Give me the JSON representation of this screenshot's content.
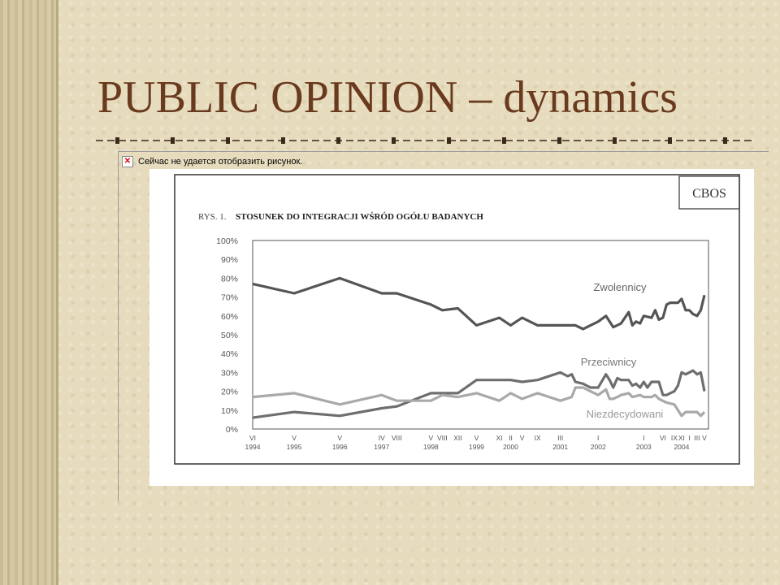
{
  "slide": {
    "title": "PUBLIC OPINION – dynamics",
    "broken_image_text": "Сейчас не удается отобразить рисунок."
  },
  "colors": {
    "title": "#6a3a1e",
    "zwolennicy": "#555555",
    "przeciwnicy": "#6e6e6e",
    "niezdecydowani": "#a9a9a9"
  },
  "chart_data": {
    "type": "line",
    "title": "STOSUNEK DO INTEGRACJI WŚRÓD OGÓŁU BADANYCH",
    "figure_label": "RYS. 1.",
    "source": "CBOS",
    "ylim": [
      0,
      100
    ],
    "yticks": [
      "0%",
      "10%",
      "20%",
      "30%",
      "40%",
      "50%",
      "60%",
      "70%",
      "80%",
      "90%",
      "100%"
    ],
    "xlim": [
      1994.42,
      2004.42
    ],
    "xticks": [
      {
        "t": 1994.42,
        "month": "VI",
        "year": "1994"
      },
      {
        "t": 1995.33,
        "month": "V",
        "year": "1995"
      },
      {
        "t": 1996.33,
        "month": "V",
        "year": "1996"
      },
      {
        "t": 1997.25,
        "month": "IV",
        "year": "1997"
      },
      {
        "t": 1997.58,
        "month": "VIII",
        "year": ""
      },
      {
        "t": 1998.33,
        "month": "V",
        "year": "1998"
      },
      {
        "t": 1998.58,
        "month": "VIII",
        "year": ""
      },
      {
        "t": 1998.92,
        "month": "XII",
        "year": ""
      },
      {
        "t": 1999.33,
        "month": "V",
        "year": "1999"
      },
      {
        "t": 1999.83,
        "month": "XI",
        "year": ""
      },
      {
        "t": 2000.08,
        "month": "II",
        "year": "2000"
      },
      {
        "t": 2000.33,
        "month": "V",
        "year": ""
      },
      {
        "t": 2000.67,
        "month": "IX",
        "year": ""
      },
      {
        "t": 2001.17,
        "month": "III",
        "year": "2001"
      },
      {
        "t": 2002.0,
        "month": "I",
        "year": "2002"
      },
      {
        "t": 2003.0,
        "month": "I",
        "year": "2003"
      },
      {
        "t": 2003.42,
        "month": "VI",
        "year": ""
      },
      {
        "t": 2003.67,
        "month": "IX",
        "year": ""
      },
      {
        "t": 2003.83,
        "month": "XI",
        "year": "2004"
      },
      {
        "t": 2004.0,
        "month": "I",
        "year": ""
      },
      {
        "t": 2004.17,
        "month": "III",
        "year": ""
      },
      {
        "t": 2004.33,
        "month": "V",
        "year": ""
      }
    ],
    "series": [
      {
        "name": "Zwolennicy",
        "points": [
          [
            1994.42,
            77
          ],
          [
            1995.33,
            72
          ],
          [
            1996.33,
            80
          ],
          [
            1997.25,
            72
          ],
          [
            1997.58,
            72
          ],
          [
            1998.33,
            66
          ],
          [
            1998.58,
            63
          ],
          [
            1998.92,
            64
          ],
          [
            1999.33,
            55
          ],
          [
            1999.83,
            59
          ],
          [
            2000.08,
            55
          ],
          [
            2000.33,
            59
          ],
          [
            2000.67,
            55
          ],
          [
            2001.17,
            55
          ],
          [
            2001.5,
            55
          ],
          [
            2001.67,
            53
          ],
          [
            2001.75,
            54
          ],
          [
            2002.0,
            57
          ],
          [
            2002.17,
            60
          ],
          [
            2002.33,
            54
          ],
          [
            2002.5,
            56
          ],
          [
            2002.67,
            62
          ],
          [
            2002.75,
            55
          ],
          [
            2002.83,
            57
          ],
          [
            2002.92,
            56
          ],
          [
            2003.0,
            60
          ],
          [
            2003.17,
            59
          ],
          [
            2003.25,
            63
          ],
          [
            2003.33,
            58
          ],
          [
            2003.42,
            59
          ],
          [
            2003.5,
            66
          ],
          [
            2003.58,
            67
          ],
          [
            2003.67,
            67
          ],
          [
            2003.75,
            67
          ],
          [
            2003.83,
            69
          ],
          [
            2003.92,
            63
          ],
          [
            2004.0,
            63
          ],
          [
            2004.08,
            61
          ],
          [
            2004.17,
            60
          ],
          [
            2004.25,
            63
          ],
          [
            2004.33,
            71
          ]
        ]
      },
      {
        "name": "Przeciwnicy",
        "points": [
          [
            1994.42,
            6
          ],
          [
            1995.33,
            9
          ],
          [
            1996.33,
            7
          ],
          [
            1997.25,
            11
          ],
          [
            1997.58,
            12
          ],
          [
            1998.33,
            19
          ],
          [
            1998.58,
            19
          ],
          [
            1998.92,
            19
          ],
          [
            1999.33,
            26
          ],
          [
            1999.83,
            26
          ],
          [
            2000.08,
            26
          ],
          [
            2000.33,
            25
          ],
          [
            2000.67,
            26
          ],
          [
            2001.17,
            30
          ],
          [
            2001.33,
            28
          ],
          [
            2001.42,
            29
          ],
          [
            2001.5,
            25
          ],
          [
            2001.67,
            24
          ],
          [
            2001.83,
            22
          ],
          [
            2002.0,
            22
          ],
          [
            2002.17,
            29
          ],
          [
            2002.25,
            26
          ],
          [
            2002.33,
            22
          ],
          [
            2002.42,
            27
          ],
          [
            2002.5,
            26
          ],
          [
            2002.67,
            26
          ],
          [
            2002.75,
            23
          ],
          [
            2002.83,
            24
          ],
          [
            2002.92,
            22
          ],
          [
            2003.0,
            25
          ],
          [
            2003.08,
            22
          ],
          [
            2003.17,
            25
          ],
          [
            2003.33,
            25
          ],
          [
            2003.42,
            18
          ],
          [
            2003.5,
            18
          ],
          [
            2003.67,
            20
          ],
          [
            2003.75,
            23
          ],
          [
            2003.83,
            30
          ],
          [
            2003.92,
            29
          ],
          [
            2004.0,
            30
          ],
          [
            2004.08,
            31
          ],
          [
            2004.17,
            29
          ],
          [
            2004.25,
            30
          ],
          [
            2004.33,
            20
          ]
        ]
      },
      {
        "name": "Niezdecydowani",
        "points": [
          [
            1994.42,
            17
          ],
          [
            1995.33,
            19
          ],
          [
            1996.33,
            13
          ],
          [
            1997.25,
            18
          ],
          [
            1997.58,
            15
          ],
          [
            1998.33,
            15
          ],
          [
            1998.58,
            18
          ],
          [
            1998.92,
            17
          ],
          [
            1999.33,
            19
          ],
          [
            1999.83,
            15
          ],
          [
            2000.08,
            19
          ],
          [
            2000.33,
            16
          ],
          [
            2000.67,
            19
          ],
          [
            2001.17,
            15
          ],
          [
            2001.42,
            17
          ],
          [
            2001.5,
            22
          ],
          [
            2001.67,
            22
          ],
          [
            2001.83,
            20
          ],
          [
            2002.0,
            18
          ],
          [
            2002.17,
            21
          ],
          [
            2002.25,
            16
          ],
          [
            2002.33,
            16
          ],
          [
            2002.42,
            17
          ],
          [
            2002.5,
            18
          ],
          [
            2002.67,
            19
          ],
          [
            2002.75,
            17
          ],
          [
            2002.92,
            18
          ],
          [
            2003.0,
            17
          ],
          [
            2003.17,
            17
          ],
          [
            2003.25,
            18
          ],
          [
            2003.33,
            16
          ],
          [
            2003.5,
            14
          ],
          [
            2003.67,
            13
          ],
          [
            2003.75,
            10
          ],
          [
            2003.83,
            7
          ],
          [
            2003.92,
            9
          ],
          [
            2004.0,
            9
          ],
          [
            2004.08,
            9
          ],
          [
            2004.17,
            9
          ],
          [
            2004.25,
            7
          ],
          [
            2004.33,
            9
          ]
        ]
      }
    ]
  }
}
